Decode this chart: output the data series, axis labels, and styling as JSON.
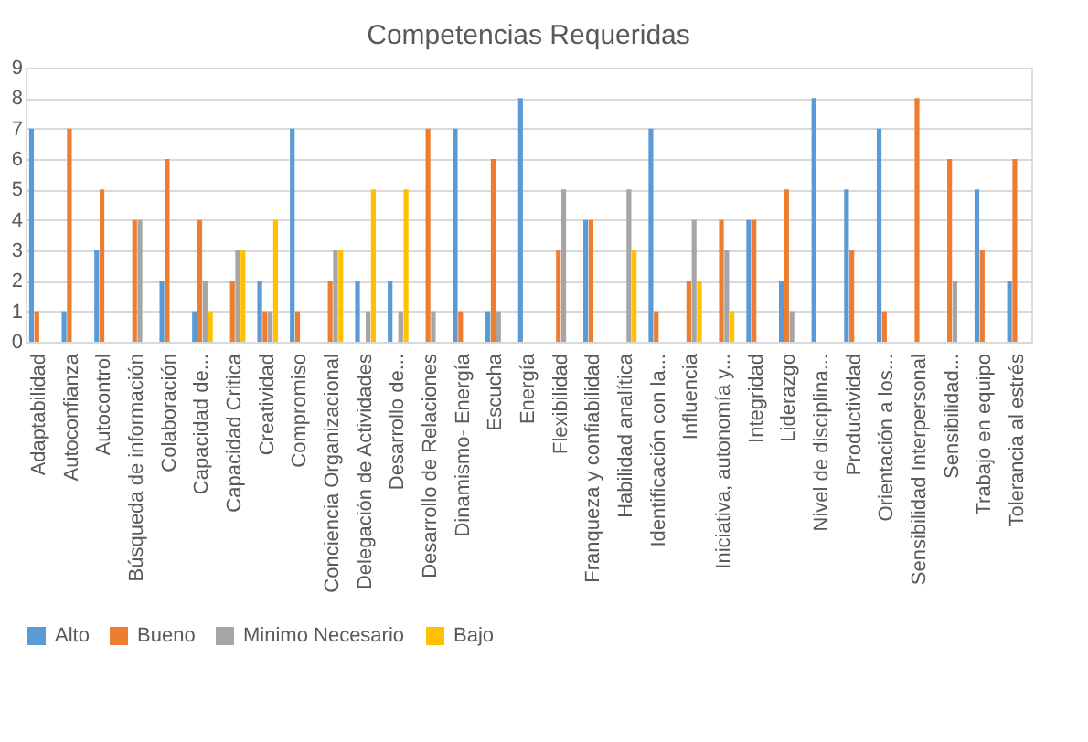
{
  "chart_data": {
    "type": "bar",
    "title": "Competencias Requeridas",
    "categories": [
      "Adaptabilidad",
      "Autoconfianza",
      "Autocontrol",
      "Búsqueda de información",
      "Colaboración",
      "Capacidad de...",
      "Capacidad Critica",
      "Creatividad",
      "Compromiso",
      "Conciencia Organizacional",
      "Delegación de Actividades",
      "Desarrollo de...",
      "Desarrollo de Relaciones",
      "Dinamismo- Energía",
      "Escucha",
      "Energía",
      "Flexibilidad",
      "Franqueza y confiabilidad",
      "Habilidad analítica",
      "Identificación con la...",
      "Influencia",
      "Iniciativa, autonomía y...",
      "Integridad",
      "Liderazgo",
      "Nivel de disciplina...",
      "Productividad",
      "Orientación a los...",
      "Sensibilidad Interpersonal",
      "Sensibilidad...",
      "Trabajo en equipo",
      "Tolerancia al estrés"
    ],
    "series": [
      {
        "name": "Alto",
        "color": "#5b9bd5",
        "values": [
          7,
          1,
          3,
          null,
          2,
          1,
          null,
          2,
          7,
          null,
          2,
          2,
          null,
          7,
          1,
          8,
          null,
          4,
          null,
          7,
          null,
          null,
          4,
          2,
          8,
          5,
          7,
          null,
          null,
          5,
          2
        ]
      },
      {
        "name": "Bueno",
        "color": "#ed7d31",
        "values": [
          1,
          7,
          5,
          4,
          6,
          4,
          2,
          1,
          1,
          2,
          null,
          null,
          7,
          1,
          6,
          null,
          3,
          4,
          null,
          1,
          2,
          4,
          4,
          5,
          null,
          3,
          1,
          8,
          6,
          3,
          6
        ]
      },
      {
        "name": "Minimo Necesario",
        "color": "#a5a5a5",
        "values": [
          null,
          null,
          null,
          4,
          null,
          2,
          3,
          1,
          null,
          3,
          1,
          1,
          1,
          null,
          1,
          null,
          5,
          null,
          5,
          null,
          4,
          3,
          null,
          1,
          null,
          null,
          null,
          null,
          2,
          null,
          null
        ]
      },
      {
        "name": "Bajo",
        "color": "#ffc000",
        "values": [
          null,
          null,
          null,
          null,
          null,
          1,
          3,
          4,
          null,
          3,
          5,
          5,
          null,
          null,
          null,
          null,
          null,
          null,
          3,
          null,
          2,
          1,
          null,
          null,
          null,
          null,
          null,
          null,
          null,
          null,
          null
        ]
      }
    ],
    "ylim": [
      0,
      9
    ],
    "yticks": [
      0,
      1,
      2,
      3,
      4,
      5,
      6,
      7,
      8,
      9
    ],
    "grid": "y",
    "legend": "bottom"
  }
}
